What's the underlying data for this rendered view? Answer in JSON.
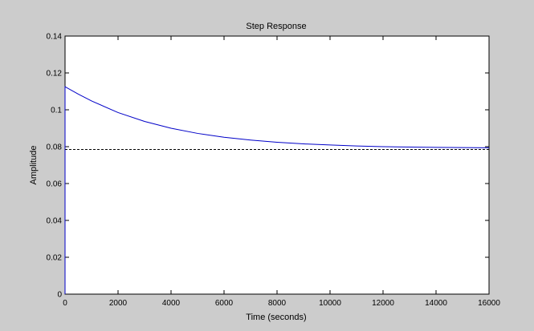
{
  "chart_data": {
    "type": "line",
    "title": "Step Response",
    "xlabel": "Time (seconds)",
    "ylabel": "Amplitude",
    "xlim": [
      0,
      16000
    ],
    "ylim": [
      0,
      0.14
    ],
    "xticks": [
      0,
      2000,
      4000,
      6000,
      8000,
      10000,
      12000,
      14000,
      16000
    ],
    "xtick_labels": [
      "0",
      "2000",
      "4000",
      "6000",
      "8000",
      "10000",
      "12000",
      "14000",
      "16000"
    ],
    "yticks": [
      0,
      0.02,
      0.04,
      0.06,
      0.08,
      0.1,
      0.12,
      0.14
    ],
    "ytick_labels": [
      "0",
      "0.02",
      "0.04",
      "0.06",
      "0.08",
      "0.1",
      "0.12",
      "0.14"
    ],
    "grid": false,
    "series": [
      {
        "color": "#0000c8",
        "style": "solid",
        "x": [
          0,
          0,
          500,
          1000,
          2000,
          3000,
          4000,
          5000,
          6000,
          7000,
          8000,
          9000,
          10000,
          11000,
          12000,
          13000,
          14000,
          15000,
          16000
        ],
        "y": [
          0,
          0.1125,
          0.1085,
          0.1048,
          0.0985,
          0.0937,
          0.09,
          0.0872,
          0.0851,
          0.0836,
          0.0824,
          0.0815,
          0.0809,
          0.0804,
          0.08,
          0.0798,
          0.0796,
          0.0795,
          0.0794
        ]
      },
      {
        "color": "#000000",
        "style": "dashed",
        "x": [
          0,
          16000
        ],
        "y": [
          0.0785,
          0.0785
        ]
      }
    ]
  }
}
